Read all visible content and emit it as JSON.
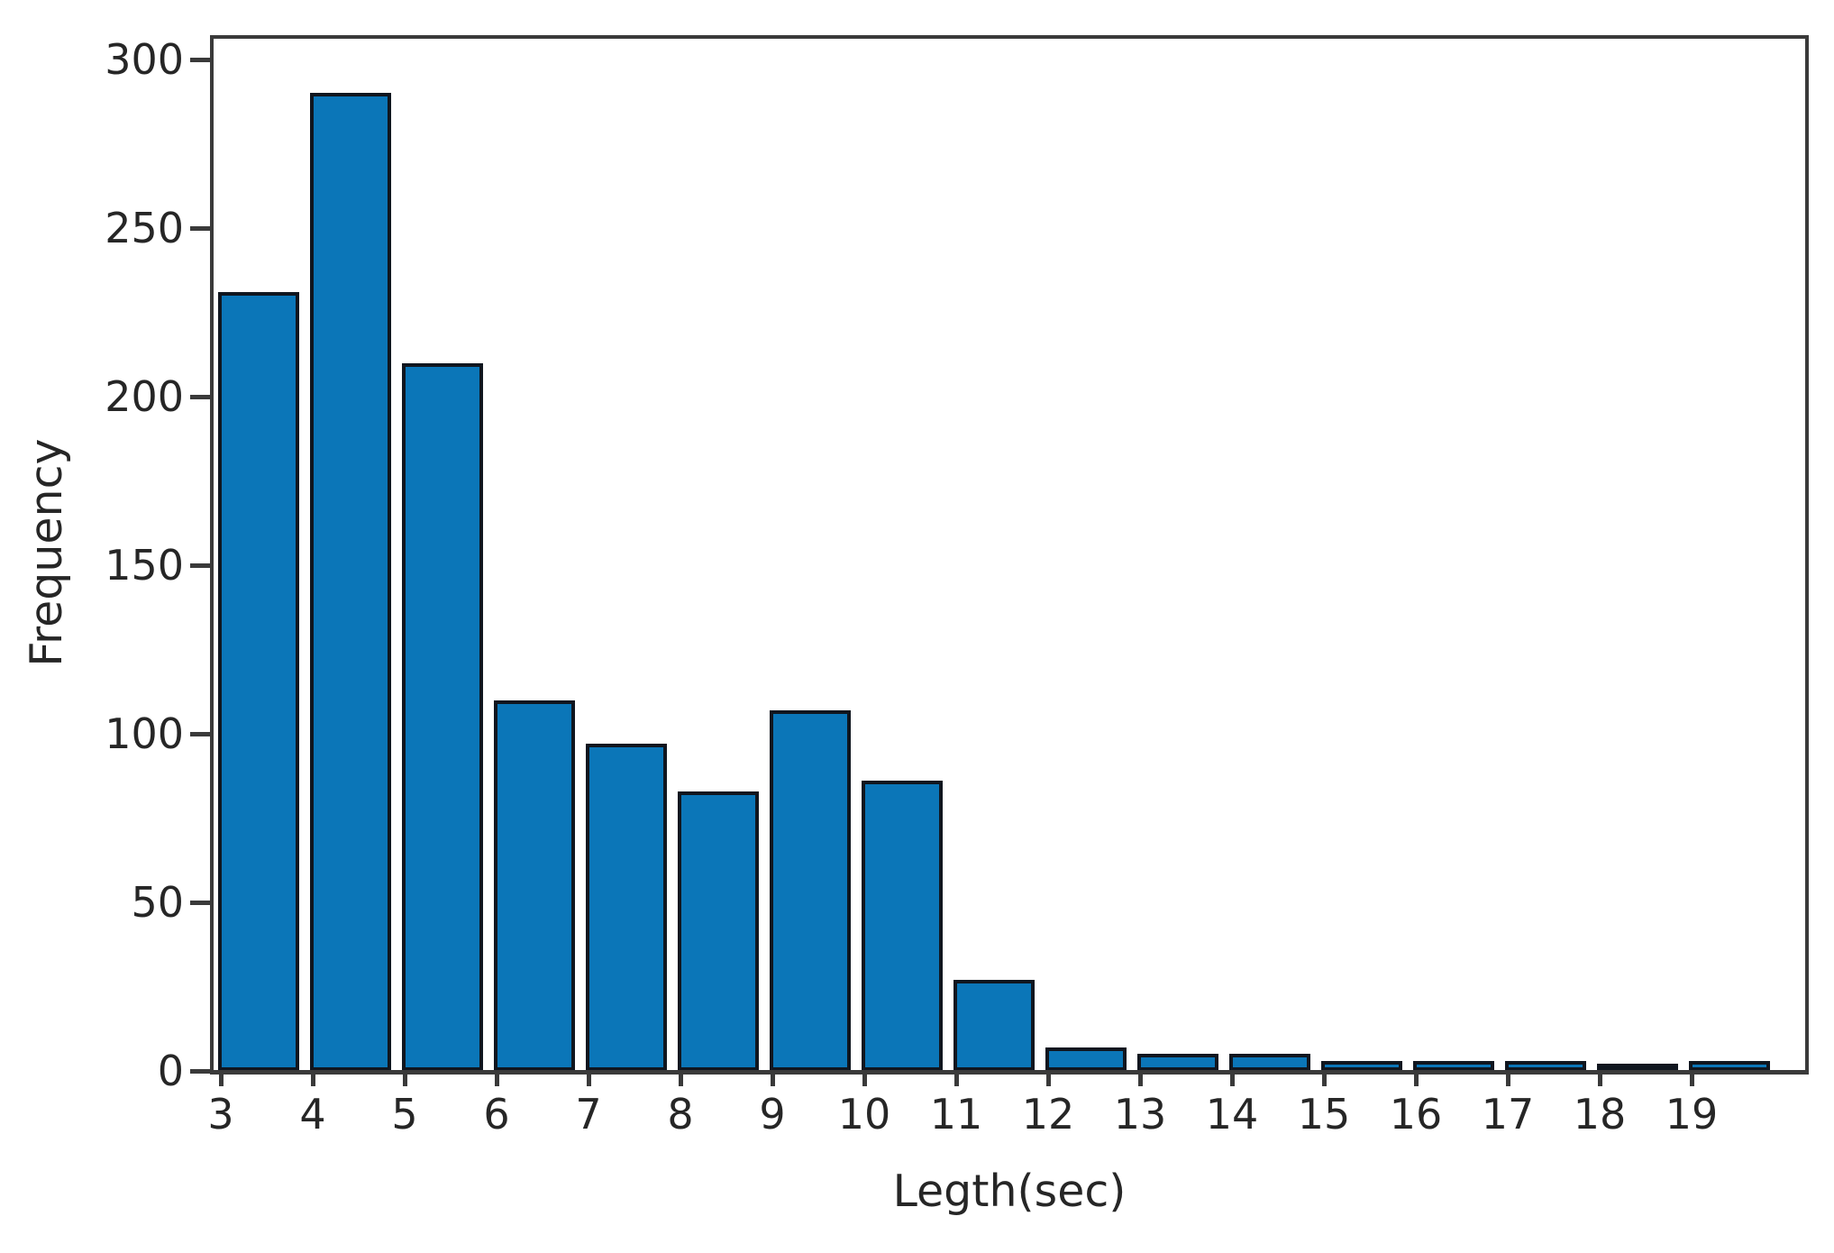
{
  "figure": {
    "background": "#ffffff"
  },
  "chart_data": {
    "type": "bar",
    "title": "",
    "xlabel": "Legth(sec)",
    "ylabel": "Frequency",
    "categories": [
      "3",
      "4",
      "5",
      "6",
      "7",
      "8",
      "9",
      "10",
      "11",
      "12",
      "13",
      "14",
      "15",
      "16",
      "17",
      "18",
      "19"
    ],
    "values": [
      231,
      290,
      210,
      110,
      97,
      83,
      107,
      86,
      27,
      7,
      5,
      5,
      3,
      3,
      3,
      1,
      3
    ],
    "yticks": [
      0,
      50,
      100,
      150,
      200,
      250,
      300
    ],
    "ylim": [
      0,
      307
    ],
    "grid": false,
    "legend": "none",
    "bar_color": "#0b76b8",
    "bar_edge_color": "#10161f",
    "axis_color": "#3a3a3a",
    "text_color": "#262626"
  }
}
